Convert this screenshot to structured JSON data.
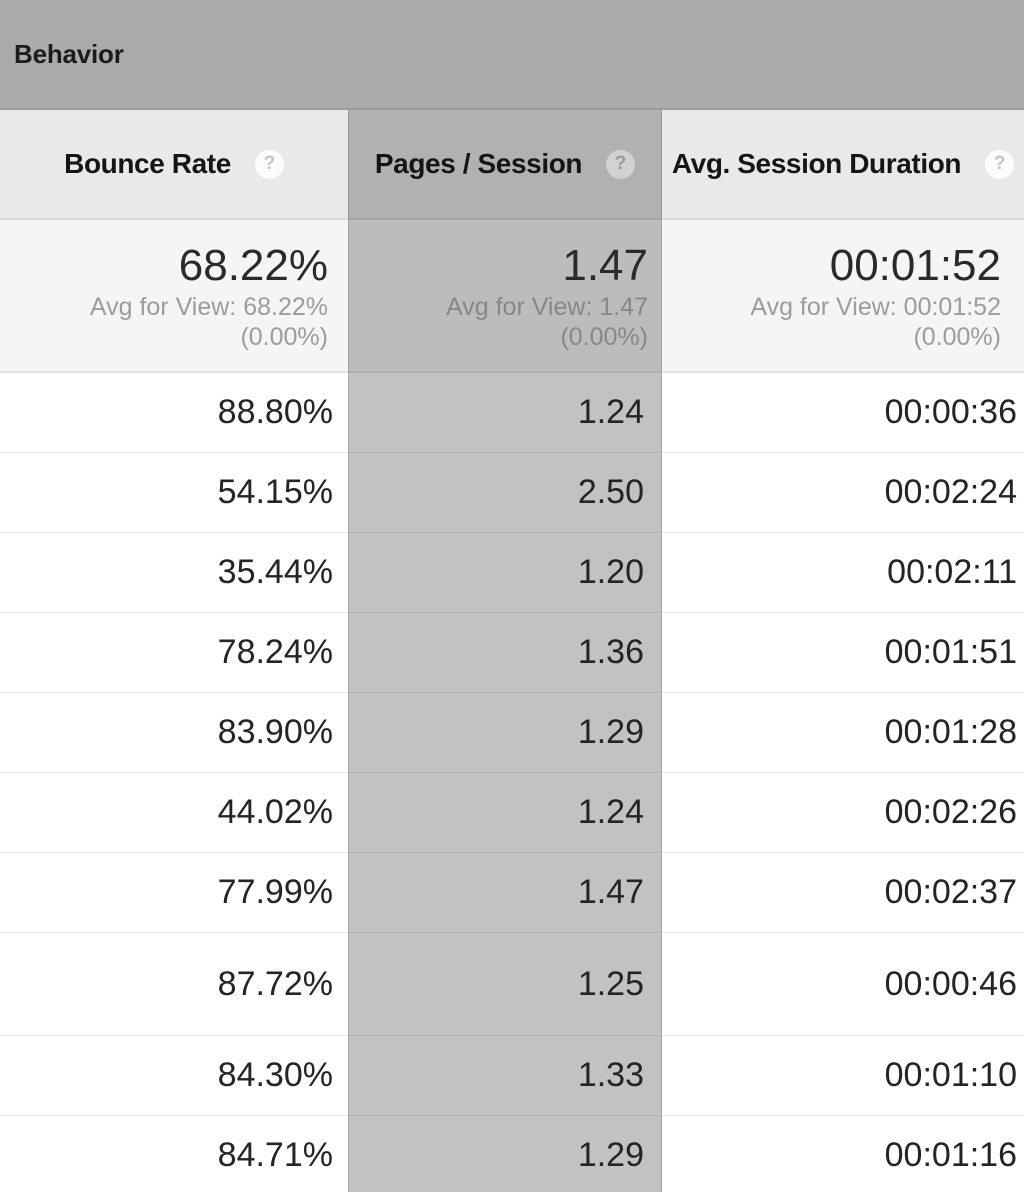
{
  "group": {
    "title": "Behavior"
  },
  "icons": {
    "help": "?"
  },
  "columns": [
    {
      "label": "Bounce Rate"
    },
    {
      "label": "Pages / Session"
    },
    {
      "label": "Avg. Session Duration"
    }
  ],
  "summary": {
    "bounce_rate": {
      "value": "68.22%",
      "avg": "Avg for View: 68.22%",
      "delta": "(0.00%)"
    },
    "pages_per_session": {
      "value": "1.47",
      "avg": "Avg for View: 1.47",
      "delta": "(0.00%)"
    },
    "avg_session_duration": {
      "value": "00:01:52",
      "avg": "Avg for View: 00:01:52",
      "delta": "(0.00%)"
    }
  },
  "rows": [
    {
      "bounce_rate": "88.80%",
      "pages_per_session": "1.24",
      "avg_session_duration": "00:00:36"
    },
    {
      "bounce_rate": "54.15%",
      "pages_per_session": "2.50",
      "avg_session_duration": "00:02:24"
    },
    {
      "bounce_rate": "35.44%",
      "pages_per_session": "1.20",
      "avg_session_duration": "00:02:11"
    },
    {
      "bounce_rate": "78.24%",
      "pages_per_session": "1.36",
      "avg_session_duration": "00:01:51"
    },
    {
      "bounce_rate": "83.90%",
      "pages_per_session": "1.29",
      "avg_session_duration": "00:01:28"
    },
    {
      "bounce_rate": "44.02%",
      "pages_per_session": "1.24",
      "avg_session_duration": "00:02:26"
    },
    {
      "bounce_rate": "77.99%",
      "pages_per_session": "1.47",
      "avg_session_duration": "00:02:37"
    },
    {
      "bounce_rate": "87.72%",
      "pages_per_session": "1.25",
      "avg_session_duration": "00:00:46"
    },
    {
      "bounce_rate": "84.30%",
      "pages_per_session": "1.33",
      "avg_session_duration": "00:01:10"
    },
    {
      "bounce_rate": "84.71%",
      "pages_per_session": "1.29",
      "avg_session_duration": "00:01:16"
    }
  ],
  "colors": {
    "group_band": "#ababab",
    "header_bg": "#e9e9e9",
    "summary_bg": "#f5f5f5",
    "row_bg": "#ffffff",
    "column_highlight": "#c2c2c2",
    "subtext": "#9c9c9c"
  }
}
